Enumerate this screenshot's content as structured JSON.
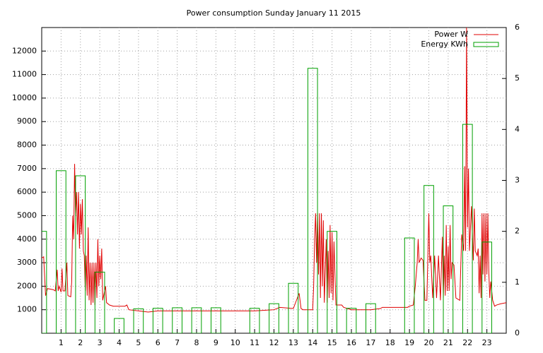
{
  "chart_data": {
    "type": "line",
    "title": "Power consumption Sunday January 11 2015",
    "xlim": [
      0,
      24
    ],
    "xticks": [
      1,
      2,
      3,
      4,
      5,
      6,
      7,
      8,
      9,
      10,
      11,
      12,
      13,
      14,
      15,
      16,
      17,
      18,
      19,
      20,
      21,
      22,
      23
    ],
    "ylim": [
      0,
      13000
    ],
    "yticks": [
      1000,
      2000,
      3000,
      4000,
      5000,
      6000,
      7000,
      8000,
      9000,
      10000,
      11000,
      12000
    ],
    "y2lim": [
      0,
      6
    ],
    "y2ticks": [
      0,
      1,
      2,
      3,
      4,
      5,
      6
    ],
    "grid": true,
    "legend": "top-right",
    "series": [
      {
        "name": "Power W",
        "color": "#e00000",
        "x": [
          0,
          0.1,
          0.2,
          0.3,
          0.6,
          0.7,
          0.8,
          0.85,
          0.9,
          1.0,
          1.05,
          1.1,
          1.2,
          1.3,
          1.35,
          1.5,
          1.55,
          1.6,
          1.65,
          1.7,
          1.75,
          1.8,
          1.85,
          1.9,
          1.95,
          2.0,
          2.05,
          2.1,
          2.15,
          2.2,
          2.25,
          2.3,
          2.35,
          2.4,
          2.45,
          2.5,
          2.55,
          2.6,
          2.65,
          2.7,
          2.75,
          2.8,
          2.85,
          2.9,
          2.95,
          3.0,
          3.05,
          3.1,
          3.15,
          3.3,
          3.35,
          3.5,
          3.7,
          4.0,
          4.3,
          4.4,
          4.5,
          5.0,
          5.5,
          6,
          7,
          8,
          9,
          10,
          11,
          12,
          12.3,
          13,
          13.3,
          13.4,
          13.5,
          14,
          14.05,
          14.1,
          14.15,
          14.2,
          14.25,
          14.3,
          14.35,
          14.4,
          14.45,
          14.5,
          14.55,
          14.6,
          14.7,
          14.75,
          14.8,
          14.85,
          14.9,
          14.95,
          15.0,
          15.05,
          15.1,
          15.2,
          15.5,
          15.6,
          16,
          16.5,
          17,
          17.5,
          17.6,
          18,
          18.5,
          18.9,
          19,
          19.2,
          19.3,
          19.4,
          19.45,
          19.5,
          19.6,
          19.7,
          19.8,
          19.9,
          20.0,
          20.05,
          20.1,
          20.2,
          20.3,
          20.4,
          20.5,
          20.6,
          20.7,
          20.75,
          20.8,
          20.85,
          20.9,
          20.95,
          21,
          21.05,
          21.1,
          21.15,
          21.2,
          21.3,
          21.4,
          21.6,
          21.7,
          21.8,
          21.85,
          21.9,
          21.95,
          22.0,
          22.05,
          22.1,
          22.2,
          22.3,
          22.35,
          22.4,
          22.5,
          22.55,
          22.6,
          22.65,
          22.7,
          22.75,
          22.8,
          22.85,
          22.9,
          22.95,
          23.0,
          23.05,
          23.1,
          23.15,
          23.2,
          23.3,
          23.4,
          23.5,
          23.7,
          24
        ],
        "values": [
          3200,
          3250,
          1600,
          1900,
          1850,
          1800,
          2700,
          1800,
          2000,
          1750,
          2750,
          1800,
          1800,
          3000,
          1600,
          1550,
          2200,
          5000,
          4000,
          7200,
          5000,
          6000,
          4200,
          6000,
          3600,
          5500,
          4200,
          5700,
          3500,
          3300,
          1800,
          3300,
          1600,
          4500,
          1400,
          3000,
          1200,
          3000,
          1300,
          3000,
          1200,
          3000,
          1500,
          4000,
          2000,
          3300,
          2300,
          3600,
          1400,
          2000,
          1300,
          1200,
          1150,
          1150,
          1150,
          1200,
          1000,
          950,
          900,
          950,
          950,
          950,
          950,
          950,
          950,
          1000,
          1100,
          1050,
          1700,
          1050,
          1000,
          1000,
          2000,
          4000,
          5100,
          3000,
          5100,
          2500,
          5100,
          1500,
          5100,
          2000,
          4800,
          1300,
          4000,
          1300,
          3500,
          1500,
          4600,
          1700,
          4300,
          1400,
          3900,
          1200,
          1200,
          1100,
          1000,
          1000,
          1000,
          1050,
          1100,
          1100,
          1100,
          1100,
          1150,
          1200,
          2000,
          3000,
          4000,
          3000,
          3200,
          3100,
          1400,
          1400,
          5100,
          3000,
          3300,
          1500,
          3300,
          1500,
          3300,
          1400,
          4100,
          1500,
          3300,
          1600,
          4600,
          1800,
          3700,
          1800,
          4600,
          2300,
          3000,
          2900,
          1500,
          1400,
          4200,
          3500,
          7100,
          3500,
          13000,
          4500,
          7000,
          3500,
          5400,
          3100,
          5300,
          3500,
          3300,
          3600,
          1700,
          3300,
          1500,
          5100,
          2500,
          5100,
          2200,
          5100,
          2500,
          5100,
          2600,
          1500,
          2200,
          1400,
          1150,
          1200,
          1250,
          1300
        ]
      },
      {
        "name": "Energy KWh",
        "color": "#00a000",
        "type": "bar",
        "axis": "y2",
        "x": [
          0,
          1,
          2,
          3,
          4,
          5,
          6,
          7,
          8,
          9,
          10,
          11,
          12,
          13,
          14,
          15,
          16,
          17,
          18,
          19,
          20,
          21,
          22,
          23
        ],
        "values": [
          2.0,
          3.19,
          3.09,
          1.2,
          0.29,
          0.48,
          0.49,
          0.5,
          0.5,
          0.5,
          0,
          0.49,
          0.58,
          0.98,
          5.2,
          2.0,
          0.49,
          0.58,
          0,
          1.87,
          2.9,
          2.5,
          4.1,
          1.79
        ]
      }
    ]
  }
}
